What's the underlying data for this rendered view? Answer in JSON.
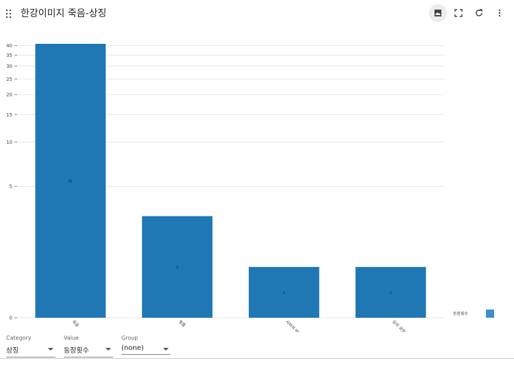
{
  "header": {
    "title": "한강이미지 죽음-상징"
  },
  "chart_data": {
    "type": "bar",
    "categories": [
      "죽음",
      "발톱",
      "사라져 버린",
      "일의 과정"
    ],
    "series": [
      {
        "name": "등장횟수",
        "color": "#1f77b4",
        "values": [
          41,
          3,
          1,
          1
        ]
      }
    ],
    "ylim": [
      0,
      41
    ],
    "yticks": [
      0,
      5,
      10,
      15,
      20,
      25,
      30,
      35,
      40
    ],
    "y_scale": "log1p",
    "grid": true,
    "legend": "bottom-right",
    "legend_color": "#3d8fd0"
  },
  "controls": [
    {
      "label": "Category",
      "value": "상징"
    },
    {
      "label": "Value",
      "value": "등장횟수"
    },
    {
      "label": "Group",
      "value": "(none)"
    }
  ]
}
